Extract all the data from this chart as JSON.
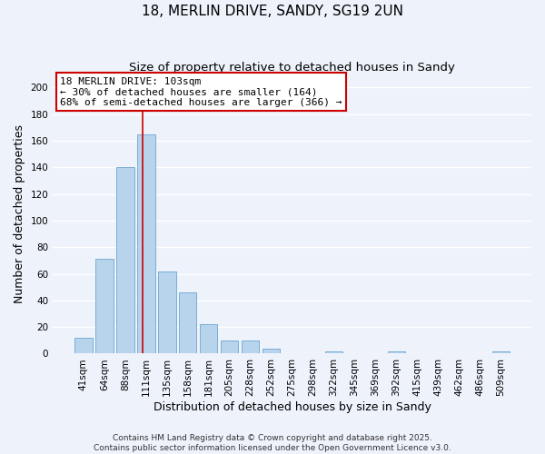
{
  "title": "18, MERLIN DRIVE, SANDY, SG19 2UN",
  "subtitle": "Size of property relative to detached houses in Sandy",
  "xlabel": "Distribution of detached houses by size in Sandy",
  "ylabel": "Number of detached properties",
  "bar_color": "#b8d4ec",
  "bar_edge_color": "#7aaed4",
  "categories": [
    "41sqm",
    "64sqm",
    "88sqm",
    "111sqm",
    "135sqm",
    "158sqm",
    "181sqm",
    "205sqm",
    "228sqm",
    "252sqm",
    "275sqm",
    "298sqm",
    "322sqm",
    "345sqm",
    "369sqm",
    "392sqm",
    "415sqm",
    "439sqm",
    "462sqm",
    "486sqm",
    "509sqm"
  ],
  "values": [
    12,
    71,
    140,
    165,
    62,
    46,
    22,
    10,
    10,
    4,
    0,
    0,
    2,
    0,
    0,
    2,
    0,
    0,
    0,
    0,
    2
  ],
  "ylim": [
    0,
    210
  ],
  "yticks": [
    0,
    20,
    40,
    60,
    80,
    100,
    120,
    140,
    160,
    180,
    200
  ],
  "vline_x_index": 2.85,
  "annotation_title": "18 MERLIN DRIVE: 103sqm",
  "annotation_line1": "← 30% of detached houses are smaller (164)",
  "annotation_line2": "68% of semi-detached houses are larger (366) →",
  "footer1": "Contains HM Land Registry data © Crown copyright and database right 2025.",
  "footer2": "Contains public sector information licensed under the Open Government Licence v3.0.",
  "background_color": "#eef2fb",
  "grid_color": "#ffffff",
  "vline_color": "#cc0000",
  "annotation_box_edge_color": "#cc0000",
  "title_fontsize": 11,
  "subtitle_fontsize": 9.5,
  "axis_label_fontsize": 9,
  "tick_fontsize": 7.5,
  "annotation_fontsize": 8,
  "footer_fontsize": 6.5
}
